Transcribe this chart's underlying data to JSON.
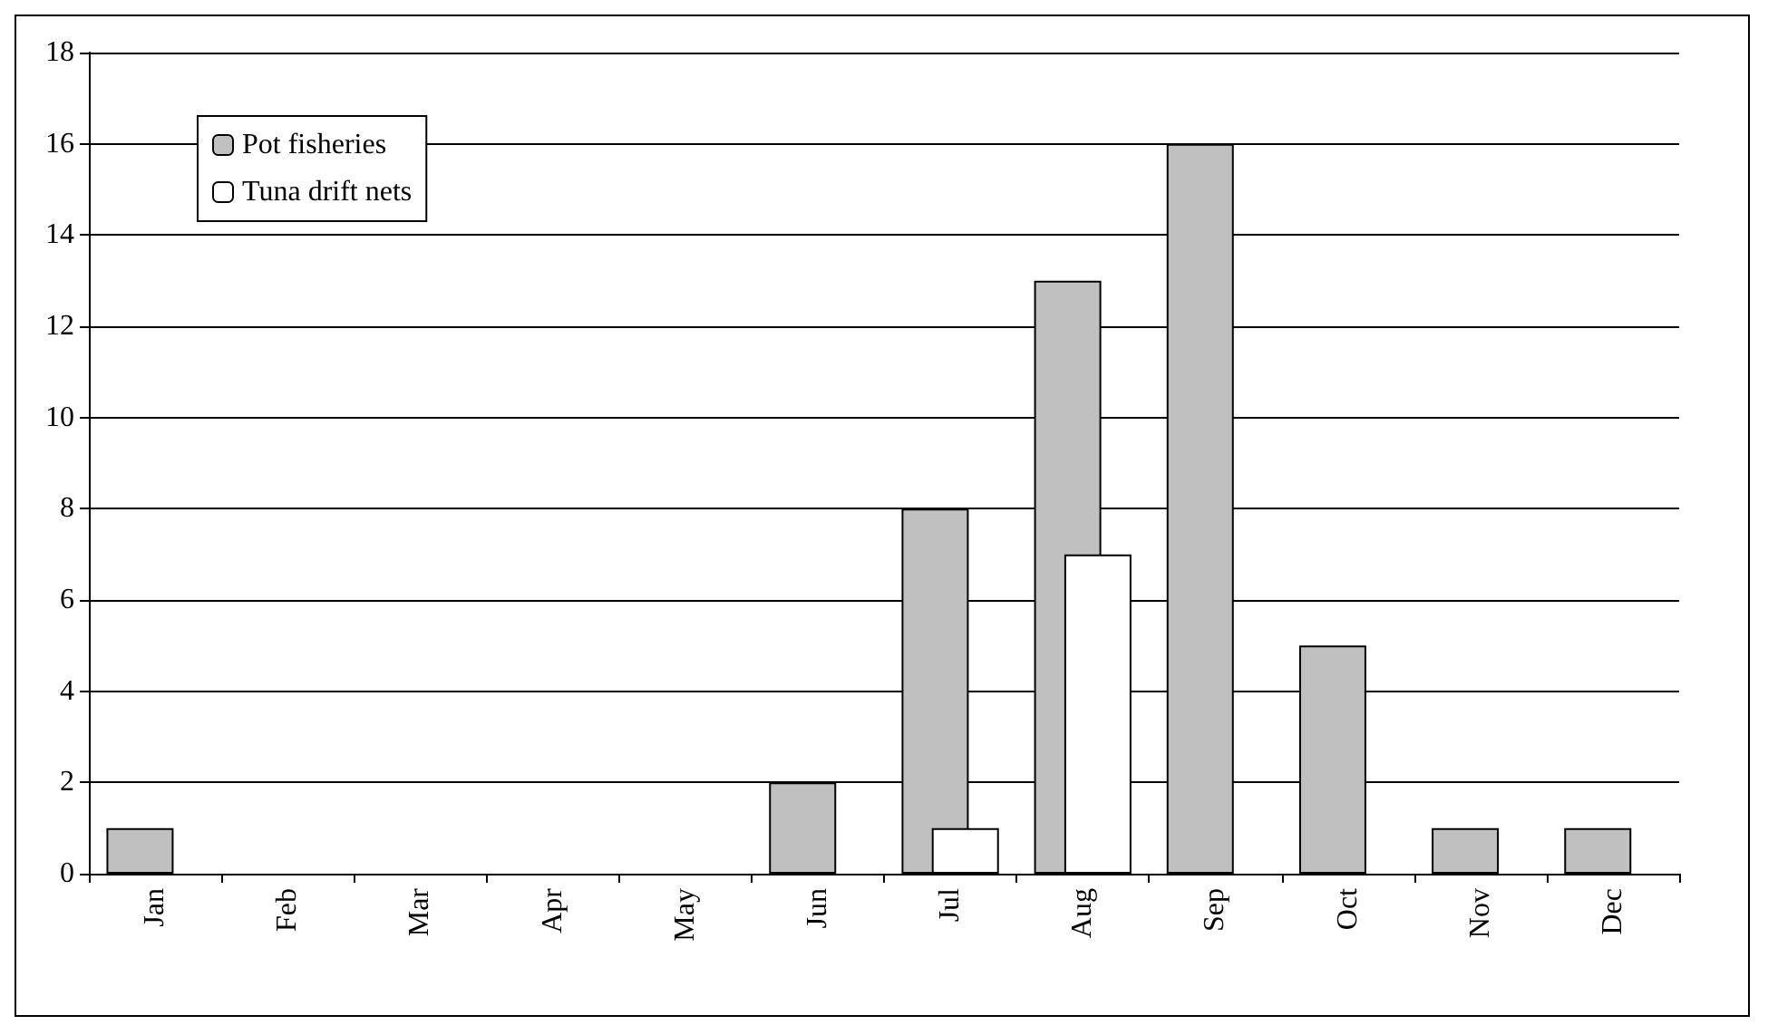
{
  "chart_data": {
    "type": "bar",
    "categories": [
      "Jan",
      "Feb",
      "Mar",
      "Apr",
      "May",
      "Jun",
      "Jul",
      "Aug",
      "Sep",
      "Oct",
      "Nov",
      "Dec"
    ],
    "series": [
      {
        "name": "Pot fisheries",
        "color": "#c0c0c0",
        "values": [
          1,
          0,
          0,
          0,
          0,
          2,
          8,
          13,
          16,
          5,
          1,
          1
        ]
      },
      {
        "name": "Tuna drift nets",
        "color": "#ffffff",
        "values": [
          0,
          0,
          0,
          0,
          0,
          0,
          1,
          7,
          0,
          0,
          0,
          0
        ]
      }
    ],
    "ylim": [
      0,
      18
    ],
    "yticks": [
      0,
      2,
      4,
      6,
      8,
      10,
      12,
      14,
      16,
      18
    ],
    "grid": "y",
    "legend": "top left"
  }
}
